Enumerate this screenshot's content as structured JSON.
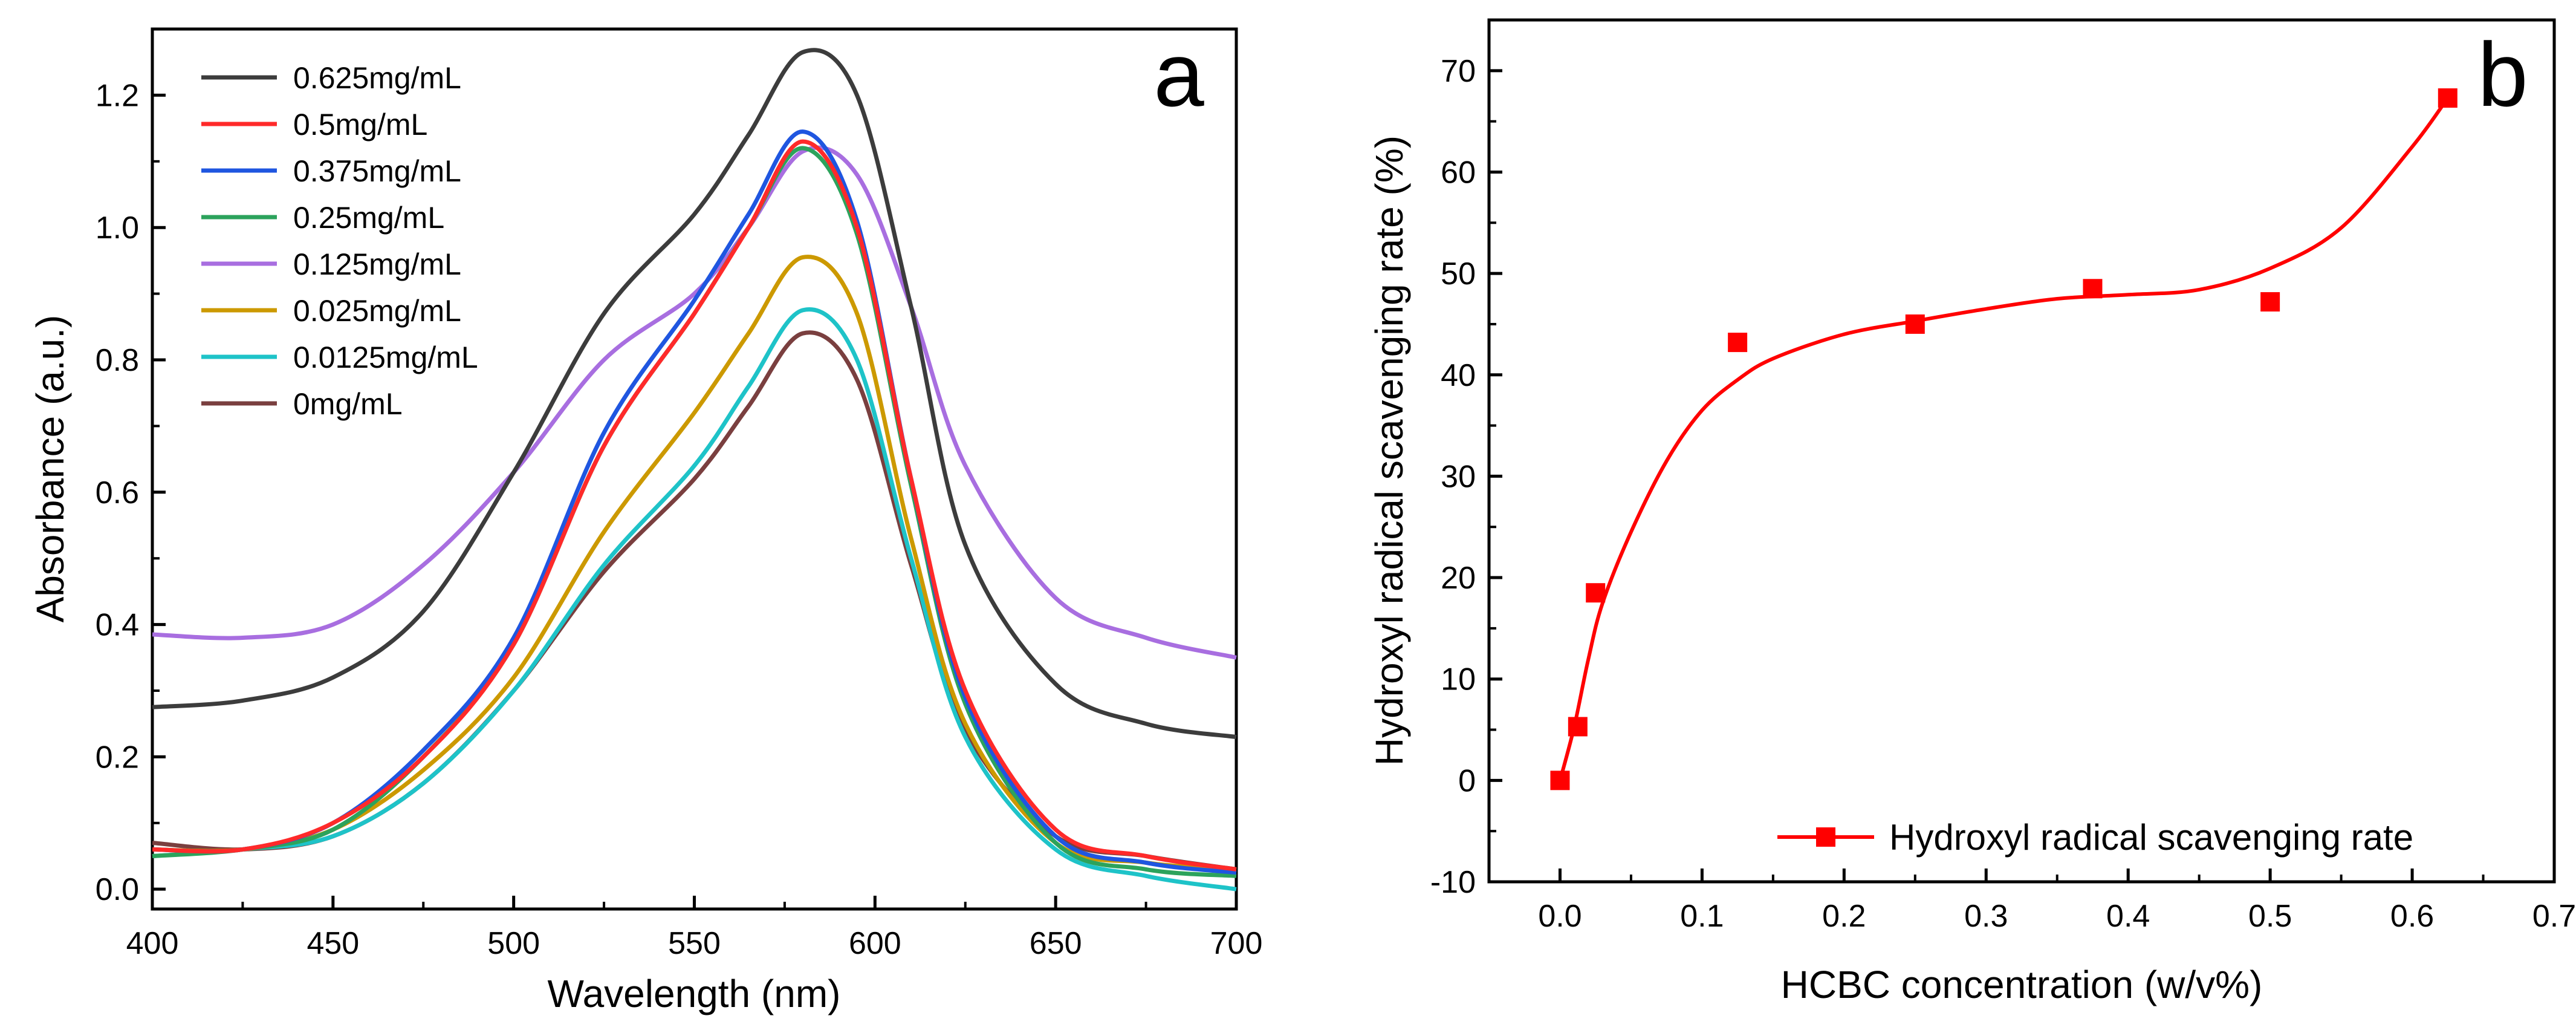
{
  "chart_data": [
    {
      "type": "line",
      "panel": "a",
      "xlabel": "Wavelength (nm)",
      "ylabel": "Absorbance (a.u.)",
      "xlim": [
        400,
        700
      ],
      "ylim": [
        -0.03,
        1.3
      ],
      "xticks": [
        400,
        450,
        500,
        550,
        600,
        650,
        700
      ],
      "xtick_labels": [
        "400",
        "450",
        "500",
        "550",
        "600",
        "650",
        "700"
      ],
      "yticks": [
        0.0,
        0.2,
        0.4,
        0.6,
        0.8,
        1.0,
        1.2
      ],
      "ytick_labels": [
        "0.0",
        "0.2",
        "0.4",
        "0.6",
        "0.8",
        "1.0",
        "1.2"
      ],
      "grid": false,
      "legend_position": "top-left",
      "x": [
        400,
        425,
        450,
        475,
        500,
        525,
        550,
        565,
        580,
        595,
        610,
        625,
        650,
        675,
        700
      ],
      "series": [
        {
          "name": "0.625mg/mL",
          "color": "#3c3c3c",
          "values": [
            0.275,
            0.285,
            0.32,
            0.42,
            0.63,
            0.87,
            1.02,
            1.14,
            1.265,
            1.2,
            0.88,
            0.52,
            0.31,
            0.25,
            0.23
          ]
        },
        {
          "name": "0.5mg/mL",
          "color": "#ff2a2a",
          "values": [
            0.06,
            0.06,
            0.1,
            0.2,
            0.37,
            0.67,
            0.87,
            1.0,
            1.13,
            1.0,
            0.62,
            0.3,
            0.09,
            0.05,
            0.03
          ]
        },
        {
          "name": "0.375mg/mL",
          "color": "#1f56e0",
          "values": [
            0.06,
            0.06,
            0.1,
            0.21,
            0.38,
            0.69,
            0.89,
            1.02,
            1.145,
            1.01,
            0.62,
            0.29,
            0.08,
            0.04,
            0.025
          ]
        },
        {
          "name": "0.25mg/mL",
          "color": "#2ca35c",
          "values": [
            0.05,
            0.06,
            0.09,
            0.2,
            0.37,
            0.67,
            0.87,
            1.0,
            1.12,
            0.99,
            0.61,
            0.28,
            0.07,
            0.03,
            0.02
          ]
        },
        {
          "name": "0.125mg/mL",
          "color": "#a86ee0",
          "values": [
            0.385,
            0.38,
            0.4,
            0.49,
            0.63,
            0.8,
            0.9,
            1.0,
            1.115,
            1.08,
            0.88,
            0.64,
            0.44,
            0.38,
            0.35
          ]
        },
        {
          "name": "0.025mg/mL",
          "color": "#cc9900",
          "values": [
            0.06,
            0.06,
            0.09,
            0.18,
            0.32,
            0.54,
            0.72,
            0.84,
            0.955,
            0.87,
            0.53,
            0.25,
            0.07,
            0.04,
            0.03
          ]
        },
        {
          "name": "0.0125mg/mL",
          "color": "#1ec3c8",
          "values": [
            0.05,
            0.06,
            0.08,
            0.16,
            0.3,
            0.49,
            0.64,
            0.76,
            0.875,
            0.8,
            0.5,
            0.23,
            0.06,
            0.02,
            0.0
          ]
        },
        {
          "name": "0mg/mL",
          "color": "#7a3f3f",
          "values": [
            0.07,
            0.06,
            0.08,
            0.16,
            0.3,
            0.48,
            0.62,
            0.73,
            0.84,
            0.77,
            0.49,
            0.24,
            0.08,
            0.05,
            0.03
          ]
        }
      ],
      "annotation": "a"
    },
    {
      "type": "scatter",
      "panel": "b",
      "xlabel": "HCBC concentration (w/v%)",
      "ylabel": "Hydroxyl radical scavenging rate (%)",
      "xlim": [
        -0.05,
        0.7
      ],
      "ylim": [
        -10,
        75
      ],
      "xticks": [
        0.0,
        0.1,
        0.2,
        0.3,
        0.4,
        0.5,
        0.6,
        0.7
      ],
      "xtick_labels": [
        "0.0",
        "0.1",
        "0.2",
        "0.3",
        "0.4",
        "0.5",
        "0.6",
        "0.7"
      ],
      "yticks": [
        -10,
        0,
        10,
        20,
        30,
        40,
        50,
        60,
        70
      ],
      "ytick_labels": [
        "-10",
        "0",
        "10",
        "20",
        "30",
        "40",
        "50",
        "60",
        "70"
      ],
      "grid": false,
      "legend_position": "bottom-right",
      "series": [
        {
          "name": "Hydroxyl radical scavenging rate",
          "color": "#ff0000",
          "marker": "square",
          "x": [
            0,
            0.0125,
            0.025,
            0.125,
            0.25,
            0.375,
            0.5,
            0.625
          ],
          "values": [
            0,
            5.3,
            18.5,
            43.2,
            45.0,
            48.5,
            47.2,
            67.3
          ]
        }
      ],
      "fit_curve": {
        "color": "#ff0000",
        "x": [
          0,
          0.01,
          0.02,
          0.03,
          0.05,
          0.075,
          0.1,
          0.125,
          0.15,
          0.2,
          0.25,
          0.3,
          0.35,
          0.4,
          0.45,
          0.5,
          0.55,
          0.6,
          0.625
        ],
        "y": [
          0,
          5.3,
          12.0,
          17.5,
          24.5,
          31.5,
          36.5,
          39.5,
          41.6,
          44.0,
          45.3,
          46.5,
          47.5,
          47.9,
          48.4,
          50.5,
          54.5,
          62.5,
          67.3
        ]
      },
      "annotation": "b"
    }
  ]
}
